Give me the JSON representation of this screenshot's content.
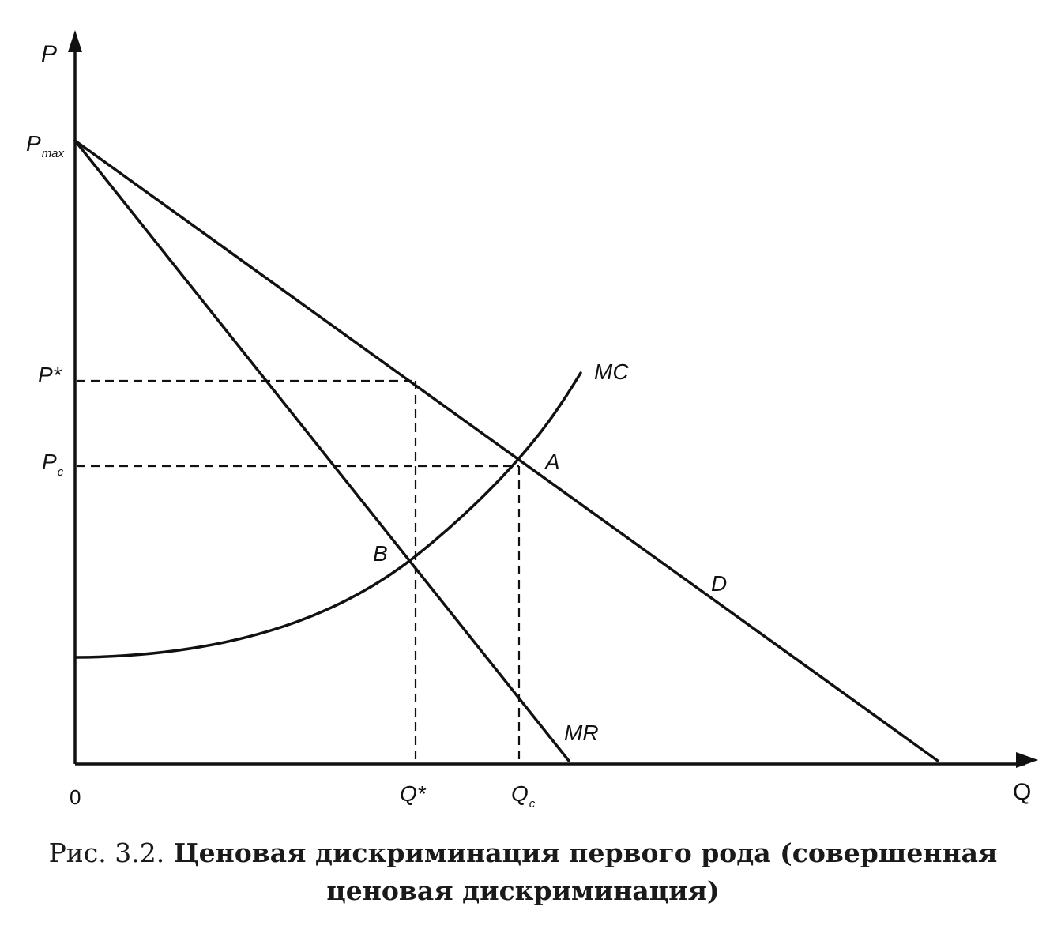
{
  "axes": {
    "y_label": "P",
    "x_label": "Q",
    "origin_label": "0"
  },
  "price_ticks": {
    "pmax": {
      "main": "P",
      "sub": "max"
    },
    "pstar": {
      "main": "P*"
    },
    "pc": {
      "main": "P",
      "sub": "c"
    }
  },
  "quantity_ticks": {
    "qstar": {
      "main": "Q*"
    },
    "qc": {
      "main": "Q",
      "sub": "c"
    }
  },
  "curves": {
    "demand": "D",
    "marginal_revenue": "MR",
    "marginal_cost": "MC"
  },
  "points": {
    "a": "A",
    "b": "B"
  },
  "caption": {
    "prefix": "Рис. 3.2.",
    "line1": "Ценовая дискриминация первого рода (совершенная",
    "line2": "ценовая дискриминация)"
  },
  "colors": {
    "ink": "#111111",
    "background": "#ffffff"
  }
}
